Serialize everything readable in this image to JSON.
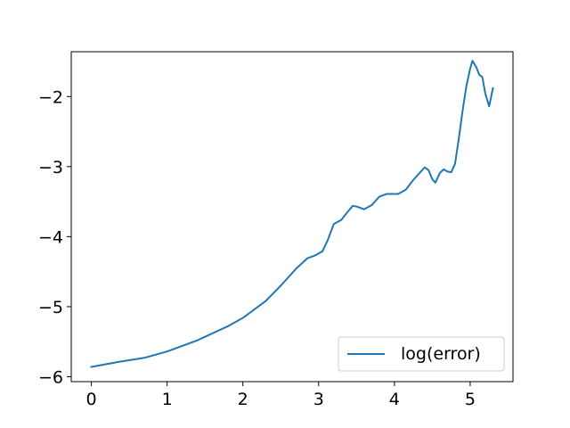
{
  "chart_data": {
    "type": "line",
    "xlim": [
      -0.265,
      5.565
    ],
    "ylim": [
      -6.07,
      -1.36
    ],
    "xticks": [
      {
        "value": 0,
        "label": "0"
      },
      {
        "value": 1,
        "label": "1"
      },
      {
        "value": 2,
        "label": "2"
      },
      {
        "value": 3,
        "label": "3"
      },
      {
        "value": 4,
        "label": "4"
      },
      {
        "value": 5,
        "label": "5"
      }
    ],
    "yticks": [
      {
        "value": -6,
        "label": "−6"
      },
      {
        "value": -5,
        "label": "−5"
      },
      {
        "value": -4,
        "label": "−4"
      },
      {
        "value": -3,
        "label": "−3"
      },
      {
        "value": -2,
        "label": "−2"
      }
    ],
    "grid": false,
    "legend": {
      "position": "lower-right",
      "entries": [
        "log(error)"
      ]
    },
    "colors": {
      "series": "#1f77b4"
    },
    "series": [
      {
        "name": "log(error)",
        "x": [
          0,
          0.35,
          0.7,
          1.0,
          1.4,
          1.8,
          2.0,
          2.3,
          2.5,
          2.7,
          2.85,
          2.95,
          3.05,
          3.12,
          3.2,
          3.3,
          3.38,
          3.45,
          3.5,
          3.6,
          3.7,
          3.8,
          3.9,
          4.05,
          4.15,
          4.25,
          4.35,
          4.4,
          4.45,
          4.5,
          4.54,
          4.6,
          4.65,
          4.7,
          4.75,
          4.8,
          4.85,
          4.9,
          4.95,
          5.0,
          5.03,
          5.08,
          5.12,
          5.16,
          5.2,
          5.25,
          5.3
        ],
        "y": [
          -5.86,
          -5.79,
          -5.73,
          -5.64,
          -5.48,
          -5.28,
          -5.16,
          -4.92,
          -4.7,
          -4.46,
          -4.31,
          -4.27,
          -4.21,
          -4.05,
          -3.82,
          -3.76,
          -3.65,
          -3.56,
          -3.57,
          -3.61,
          -3.55,
          -3.43,
          -3.39,
          -3.39,
          -3.33,
          -3.19,
          -3.07,
          -3.01,
          -3.05,
          -3.18,
          -3.23,
          -3.09,
          -3.04,
          -3.07,
          -3.08,
          -2.96,
          -2.6,
          -2.2,
          -1.85,
          -1.6,
          -1.49,
          -1.58,
          -1.69,
          -1.72,
          -1.96,
          -2.14,
          -1.88
        ]
      }
    ]
  }
}
